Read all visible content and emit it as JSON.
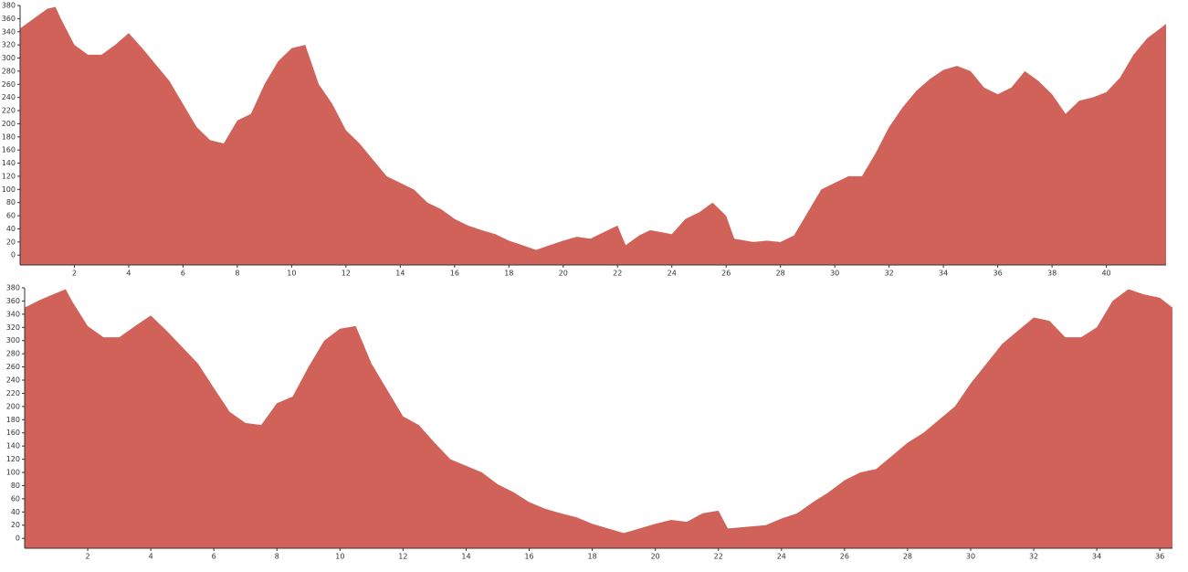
{
  "chart_data": [
    {
      "type": "area",
      "color": "#d0625a",
      "x": [
        0,
        0.5,
        1,
        1.3,
        1.5,
        2,
        2.5,
        3,
        3.5,
        4,
        4.5,
        5,
        5.5,
        6,
        6.5,
        7,
        7.5,
        8,
        8.5,
        9,
        9.5,
        10,
        10.5,
        11,
        11.5,
        12,
        12.5,
        13,
        13.5,
        14,
        14.5,
        15,
        15.5,
        16,
        16.5,
        17,
        17.5,
        18,
        18.5,
        19,
        19.5,
        20,
        20.5,
        21,
        21.5,
        22,
        22.3,
        22.8,
        23.2,
        24,
        24.5,
        25,
        25.5,
        26,
        26.3,
        27,
        27.5,
        28,
        28.5,
        29,
        29.5,
        30,
        30.5,
        31,
        31.5,
        32,
        32.5,
        33,
        33.5,
        34,
        34.5,
        35,
        35.5,
        36,
        36.5,
        37,
        37.5,
        38,
        38.5,
        39,
        39.5,
        40,
        40.5,
        41,
        41.5,
        42.2
      ],
      "values": [
        345,
        360,
        375,
        378,
        360,
        320,
        305,
        305,
        320,
        338,
        315,
        290,
        265,
        230,
        195,
        175,
        170,
        205,
        215,
        260,
        295,
        315,
        320,
        260,
        230,
        190,
        170,
        145,
        120,
        110,
        100,
        80,
        70,
        55,
        45,
        38,
        32,
        22,
        15,
        8,
        15,
        22,
        28,
        25,
        35,
        45,
        15,
        30,
        38,
        32,
        55,
        65,
        80,
        60,
        25,
        20,
        22,
        20,
        30,
        65,
        100,
        110,
        120,
        120,
        155,
        195,
        225,
        250,
        268,
        282,
        288,
        280,
        255,
        245,
        255,
        280,
        265,
        245,
        215,
        235,
        240,
        248,
        270,
        305,
        330,
        352
      ],
      "xlim": [
        0,
        42.2
      ],
      "ylim": [
        -15,
        380
      ],
      "xticks": [
        2,
        4,
        6,
        8,
        10,
        12,
        14,
        16,
        18,
        20,
        22,
        24,
        26,
        28,
        30,
        32,
        34,
        36,
        38,
        40
      ],
      "yticks": [
        0,
        20,
        40,
        60,
        80,
        100,
        120,
        140,
        160,
        180,
        200,
        220,
        240,
        260,
        280,
        300,
        320,
        340,
        360,
        380
      ]
    },
    {
      "type": "area",
      "color": "#d0625a",
      "x": [
        0,
        0.5,
        1,
        1.3,
        1.5,
        2,
        2.5,
        3,
        3.5,
        4,
        4.5,
        5,
        5.5,
        6,
        6.5,
        7,
        7.5,
        8,
        8.5,
        9,
        9.5,
        10,
        10.5,
        11,
        11.5,
        12,
        12.5,
        13,
        13.5,
        14,
        14.5,
        15,
        15.5,
        16,
        16.5,
        17,
        17.5,
        18,
        18.5,
        19,
        19.5,
        20,
        20.5,
        21,
        21.5,
        22,
        22.3,
        23,
        23.5,
        24,
        24.5,
        25,
        25.5,
        26,
        26.5,
        27,
        27.5,
        28,
        28.5,
        29,
        29.5,
        30,
        30.5,
        31,
        31.5,
        32,
        32.5,
        33,
        33.5,
        34,
        34.5,
        35,
        35.5,
        36,
        36.4
      ],
      "values": [
        350,
        362,
        372,
        378,
        360,
        322,
        305,
        305,
        322,
        338,
        315,
        290,
        265,
        228,
        192,
        175,
        172,
        205,
        215,
        260,
        300,
        318,
        322,
        265,
        225,
        185,
        172,
        145,
        120,
        110,
        100,
        82,
        70,
        55,
        45,
        38,
        32,
        22,
        15,
        8,
        15,
        22,
        28,
        25,
        38,
        42,
        15,
        18,
        20,
        30,
        38,
        55,
        70,
        88,
        100,
        105,
        125,
        145,
        160,
        180,
        200,
        235,
        265,
        295,
        315,
        335,
        330,
        305,
        305,
        320,
        360,
        378,
        370,
        365,
        350
      ],
      "xlim": [
        0,
        36.4
      ],
      "ylim": [
        -15,
        380
      ],
      "xticks": [
        2,
        4,
        6,
        8,
        10,
        12,
        14,
        16,
        18,
        20,
        22,
        24,
        26,
        28,
        30,
        32,
        34,
        36
      ],
      "yticks": [
        0,
        20,
        40,
        60,
        80,
        100,
        120,
        140,
        160,
        180,
        200,
        220,
        240,
        260,
        280,
        300,
        320,
        340,
        360,
        380
      ]
    }
  ]
}
